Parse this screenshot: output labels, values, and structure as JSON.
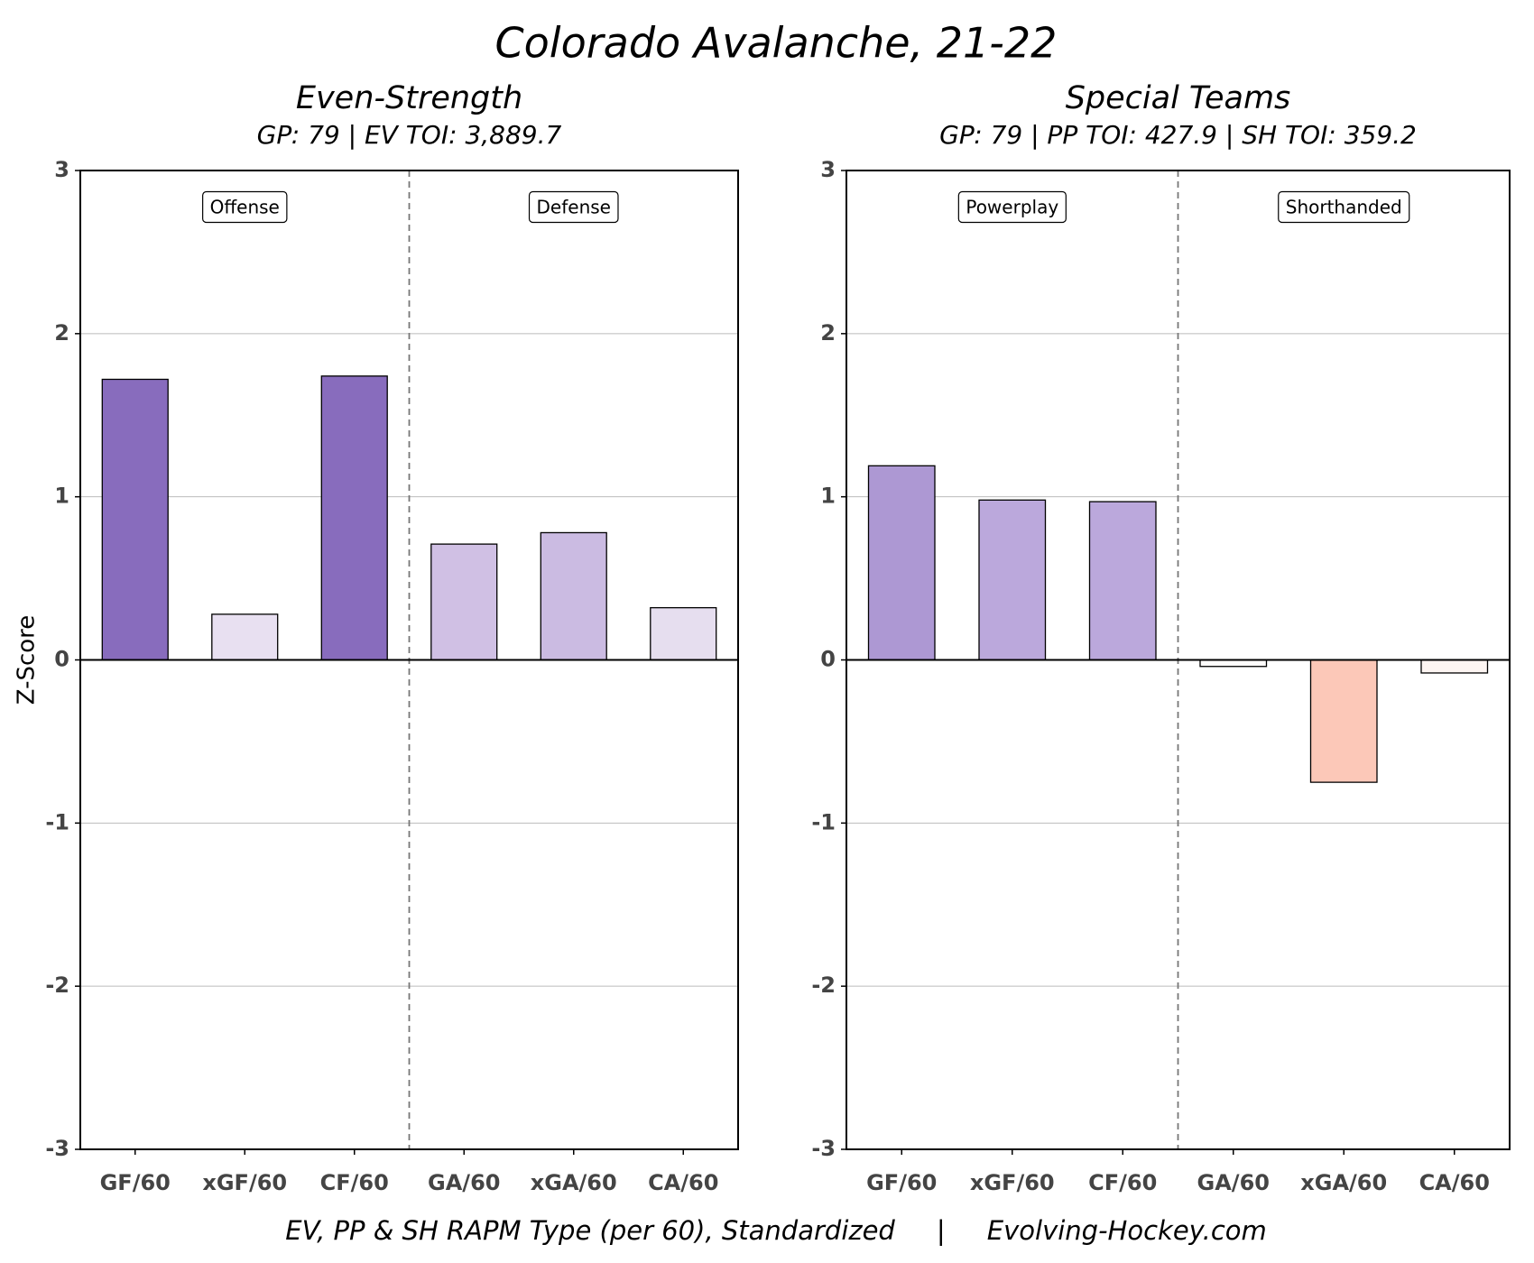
{
  "title": "Colorado Avalanche, 21-22",
  "caption": "EV, PP & SH RAPM Type (per 60), Standardized     |     Evolving-Hockey.com",
  "chart_data": [
    {
      "type": "bar",
      "title": "Even-Strength",
      "subtitle": "GP: 79 | EV TOI: 3,889.7",
      "ylabel": "Z-Score",
      "group_labels": [
        "Offense",
        "Defense"
      ],
      "categories": [
        "GF/60",
        "xGF/60",
        "CF/60",
        "GA/60",
        "xGA/60",
        "CA/60"
      ],
      "values": [
        1.72,
        0.28,
        1.74,
        0.71,
        0.78,
        0.32
      ],
      "colors": [
        "#886cbd",
        "#e8e0f1",
        "#886cbd",
        "#d0c0e4",
        "#cbbbe2",
        "#e6deef"
      ],
      "ylim": [
        -3,
        3
      ],
      "yticks": [
        -3,
        -2,
        -1,
        0,
        1,
        2,
        3
      ],
      "grid": true
    },
    {
      "type": "bar",
      "title": "Special Teams",
      "subtitle": "GP: 79 | PP TOI: 427.9 | SH TOI: 359.2",
      "group_labels": [
        "Powerplay",
        "Shorthanded"
      ],
      "categories": [
        "GF/60",
        "xGF/60",
        "CF/60",
        "GA/60",
        "xGA/60",
        "CA/60"
      ],
      "values": [
        1.19,
        0.98,
        0.97,
        -0.04,
        -0.75,
        -0.08
      ],
      "colors": [
        "#ad98d3",
        "#bba8dc",
        "#bba8dc",
        "#fefcfb",
        "#fcc8b8",
        "#fdf5f2"
      ],
      "ylim": [
        -3,
        3
      ],
      "yticks": [
        -3,
        -2,
        -1,
        0,
        1,
        2,
        3
      ],
      "grid": true
    }
  ]
}
